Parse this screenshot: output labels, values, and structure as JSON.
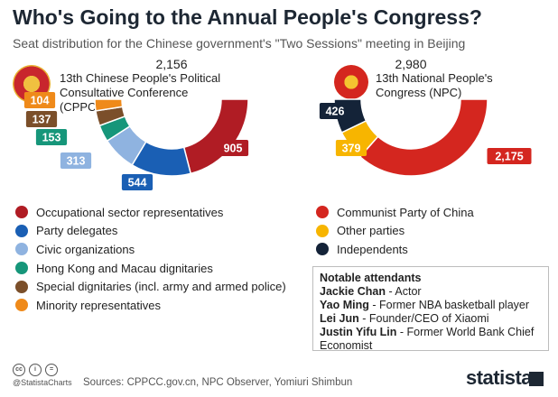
{
  "header": {
    "title": "Who's Going to the Annual People's Congress?",
    "subtitle": "Seat distribution for the Chinese government's \"Two Sessions\" meeting in Beijing"
  },
  "chart_data": [
    {
      "type": "pie",
      "variant": "half-donut",
      "title": "13th Chinese People's Political Consultative Conference (CPPCC)",
      "total": "2,156",
      "slices": [
        {
          "name": "Occupational sector representatives",
          "value": 905,
          "label": "905",
          "color": "#b01c24"
        },
        {
          "name": "Party delegates",
          "value": 544,
          "label": "544",
          "color": "#1a5fb4"
        },
        {
          "name": "Civic organizations",
          "value": 313,
          "label": "313",
          "color": "#8fb3e0"
        },
        {
          "name": "Hong Kong and Macau dignitaries",
          "value": 153,
          "label": "153",
          "color": "#16967a"
        },
        {
          "name": "Special dignitaries (incl. army and armed police)",
          "value": 137,
          "label": "137",
          "color": "#7b4f2a"
        },
        {
          "name": "Minority representatives",
          "value": 104,
          "label": "104",
          "color": "#ef8a1a"
        }
      ]
    },
    {
      "type": "pie",
      "variant": "half-donut",
      "title": "13th National People's Congress (NPC)",
      "total": "2,980",
      "slices": [
        {
          "name": "Communist Party of China",
          "value": 2175,
          "label": "2,175",
          "color": "#d4261f"
        },
        {
          "name": "Other parties",
          "value": 379,
          "label": "379",
          "color": "#f7b500"
        },
        {
          "name": "Independents",
          "value": 426,
          "label": "426",
          "color": "#142338"
        }
      ]
    }
  ],
  "notable": {
    "heading": "Notable attendants",
    "people": [
      {
        "name": "Jackie Chan",
        "role": " - Actor"
      },
      {
        "name": "Yao Ming",
        "role": " - Former NBA basketball player"
      },
      {
        "name": "Lei Jun",
        "role": " - Founder/CEO of Xiaomi"
      },
      {
        "name": "Justin Yifu Lin",
        "role": " - Former World Bank Chief Economist"
      }
    ]
  },
  "footer": {
    "handle": "@StatistaCharts",
    "sources": "Sources: CPPCC.gov.cn, NPC Observer, Yomiuri Shimbun",
    "brand": "statista",
    "cc_icons": [
      "cc",
      "i",
      "="
    ]
  }
}
